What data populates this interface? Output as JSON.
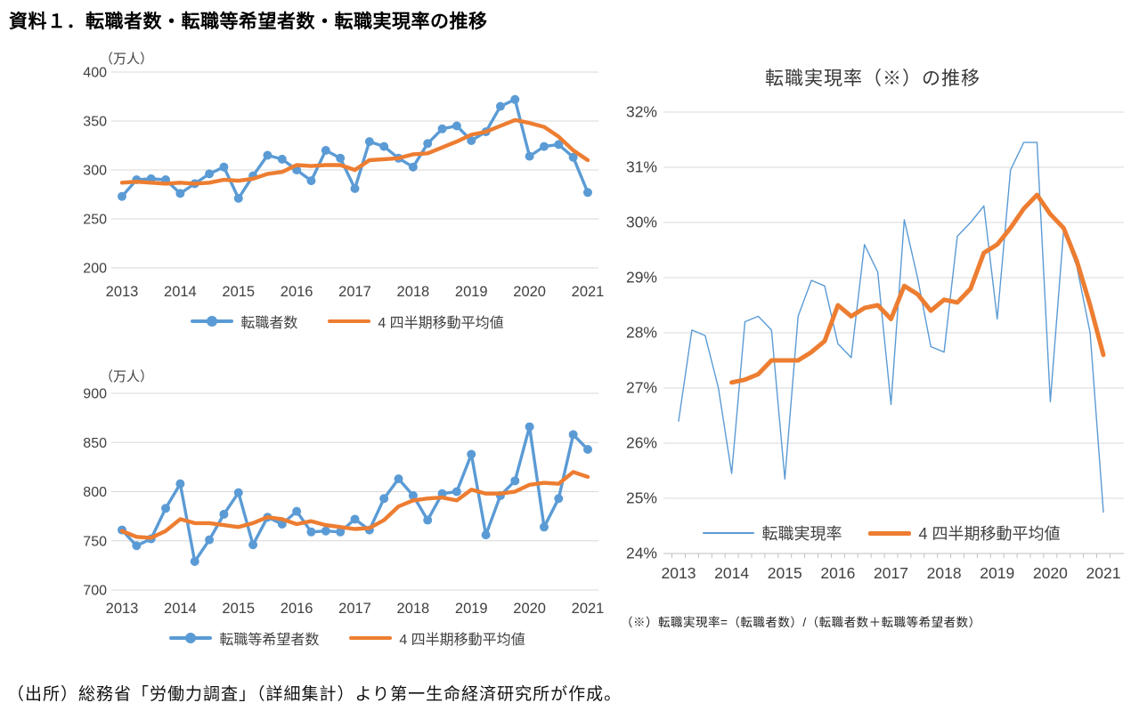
{
  "page_title": "資料１．転職者数・転職等希望者数・転職実現率の推移",
  "footer": {
    "source": "（出所）総務省「労働力調査」（詳細集計）より第一生命経済研究所が作成。"
  },
  "colors": {
    "blue": "#5B9BD5",
    "orange": "#ED7D31",
    "grid": "#D9D9D9",
    "axis": "#BFBFBF",
    "text": "#404040"
  },
  "chart_data": [
    {
      "type": "line",
      "id": "job-changers",
      "unit_label": "（万人）",
      "categories": [
        "2013Q1",
        "2013Q2",
        "2013Q3",
        "2013Q4",
        "2014Q1",
        "2014Q2",
        "2014Q3",
        "2014Q4",
        "2015Q1",
        "2015Q2",
        "2015Q3",
        "2015Q4",
        "2016Q1",
        "2016Q2",
        "2016Q3",
        "2016Q4",
        "2017Q1",
        "2017Q2",
        "2017Q3",
        "2017Q4",
        "2018Q1",
        "2018Q2",
        "2018Q3",
        "2018Q4",
        "2019Q1",
        "2019Q2",
        "2019Q3",
        "2019Q4",
        "2020Q1",
        "2020Q2",
        "2020Q3",
        "2020Q4",
        "2021Q1"
      ],
      "x_tick_labels": [
        "2013",
        "2014",
        "2015",
        "2016",
        "2017",
        "2018",
        "2019",
        "2020",
        "2021"
      ],
      "y_axis": {
        "min": 200,
        "max": 400,
        "step": 50,
        "suffix": ""
      },
      "grid": true,
      "legend_position": "bottom",
      "series": [
        {
          "name": "転職者数",
          "color": "#5B9BD5",
          "line_width": 3.4,
          "marker": true,
          "values": [
            273,
            290,
            291,
            290,
            276,
            286,
            296,
            303,
            271,
            294,
            315,
            311,
            300,
            289,
            320,
            312,
            281,
            329,
            324,
            312,
            303,
            327,
            342,
            345,
            330,
            339,
            365,
            372,
            314,
            324,
            326,
            313,
            277
          ]
        },
        {
          "name": "4 四半期移動平均値",
          "color": "#ED7D31",
          "line_width": 4.4,
          "marker": false,
          "values": [
            287,
            288,
            287,
            286,
            287,
            286,
            287,
            290,
            289,
            291,
            296,
            298,
            305,
            304,
            305,
            305,
            300,
            310,
            311,
            312,
            316,
            317,
            323,
            329,
            336,
            339,
            345,
            351,
            348,
            344,
            334,
            320,
            310
          ]
        }
      ]
    },
    {
      "type": "line",
      "id": "job-change-hopefuls",
      "unit_label": "（万人）",
      "categories": [
        "2013Q1",
        "2013Q2",
        "2013Q3",
        "2013Q4",
        "2014Q1",
        "2014Q2",
        "2014Q3",
        "2014Q4",
        "2015Q1",
        "2015Q2",
        "2015Q3",
        "2015Q4",
        "2016Q1",
        "2016Q2",
        "2016Q3",
        "2016Q4",
        "2017Q1",
        "2017Q2",
        "2017Q3",
        "2017Q4",
        "2018Q1",
        "2018Q2",
        "2018Q3",
        "2018Q4",
        "2019Q1",
        "2019Q2",
        "2019Q3",
        "2019Q4",
        "2020Q1",
        "2020Q2",
        "2020Q3",
        "2020Q4",
        "2021Q1"
      ],
      "x_tick_labels": [
        "2013",
        "2014",
        "2015",
        "2016",
        "2017",
        "2018",
        "2019",
        "2020",
        "2021"
      ],
      "y_axis": {
        "min": 700,
        "max": 900,
        "step": 50,
        "suffix": ""
      },
      "grid": true,
      "legend_position": "bottom",
      "series": [
        {
          "name": "転職等希望者数",
          "color": "#5B9BD5",
          "line_width": 3.4,
          "marker": true,
          "values": [
            761,
            745,
            752,
            783,
            808,
            729,
            751,
            777,
            799,
            746,
            774,
            767,
            780,
            759,
            760,
            759,
            772,
            761,
            793,
            813,
            796,
            771,
            798,
            800,
            838,
            756,
            796,
            811,
            866,
            764,
            793,
            858,
            843
          ]
        },
        {
          "name": "4 四半期移動平均値",
          "color": "#ED7D31",
          "line_width": 4.4,
          "marker": false,
          "values": [
            760,
            754,
            753,
            760,
            772,
            768,
            768,
            766,
            764,
            768,
            774,
            772,
            767,
            770,
            766,
            764,
            762,
            763,
            771,
            785,
            791,
            793,
            794,
            791,
            802,
            798,
            798,
            800,
            807,
            809,
            808,
            820,
            815
          ]
        }
      ]
    },
    {
      "type": "line",
      "id": "realization-rate",
      "title": "転職実現率（※）の推移",
      "note": "（※）転職実現率=（転職者数）/（転職者数＋転職等希望者数）",
      "categories": [
        "2013Q1",
        "2013Q2",
        "2013Q3",
        "2013Q4",
        "2014Q1",
        "2014Q2",
        "2014Q3",
        "2014Q4",
        "2015Q1",
        "2015Q2",
        "2015Q3",
        "2015Q4",
        "2016Q1",
        "2016Q2",
        "2016Q3",
        "2016Q4",
        "2017Q1",
        "2017Q2",
        "2017Q3",
        "2017Q4",
        "2018Q1",
        "2018Q2",
        "2018Q3",
        "2018Q4",
        "2019Q1",
        "2019Q2",
        "2019Q3",
        "2019Q4",
        "2020Q1",
        "2020Q2",
        "2020Q3",
        "2020Q4",
        "2021Q1"
      ],
      "x_tick_labels": [
        "2013",
        "2014",
        "2015",
        "2016",
        "2017",
        "2018",
        "2019",
        "2020",
        "2021"
      ],
      "y_axis": {
        "min": 24,
        "max": 32,
        "step": 1,
        "suffix": "%"
      },
      "grid": true,
      "x_minor_ticks": true,
      "legend_position": "inside-bottom",
      "series": [
        {
          "name": "転職実現率",
          "color": "#5B9BD5",
          "line_width": 1.4,
          "marker": false,
          "values": [
            26.4,
            28.05,
            27.95,
            27.0,
            25.45,
            28.2,
            28.3,
            28.05,
            25.35,
            28.3,
            28.95,
            28.85,
            27.8,
            27.55,
            29.6,
            29.1,
            26.7,
            30.05,
            29.0,
            27.75,
            27.65,
            29.75,
            30.0,
            30.3,
            28.25,
            30.95,
            31.45,
            31.45,
            26.75,
            29.85,
            29.2,
            28.0,
            24.75
          ]
        },
        {
          "name": "4 四半期移動平均値",
          "color": "#ED7D31",
          "line_width": 5,
          "marker": false,
          "values": [
            null,
            null,
            null,
            null,
            27.1,
            27.15,
            27.25,
            27.5,
            27.5,
            27.5,
            27.65,
            27.85,
            28.5,
            28.3,
            28.45,
            28.5,
            28.25,
            28.85,
            28.7,
            28.4,
            28.6,
            28.55,
            28.8,
            29.45,
            29.6,
            29.9,
            30.25,
            30.5,
            30.15,
            29.9,
            29.3,
            28.5,
            27.6
          ]
        }
      ]
    }
  ]
}
